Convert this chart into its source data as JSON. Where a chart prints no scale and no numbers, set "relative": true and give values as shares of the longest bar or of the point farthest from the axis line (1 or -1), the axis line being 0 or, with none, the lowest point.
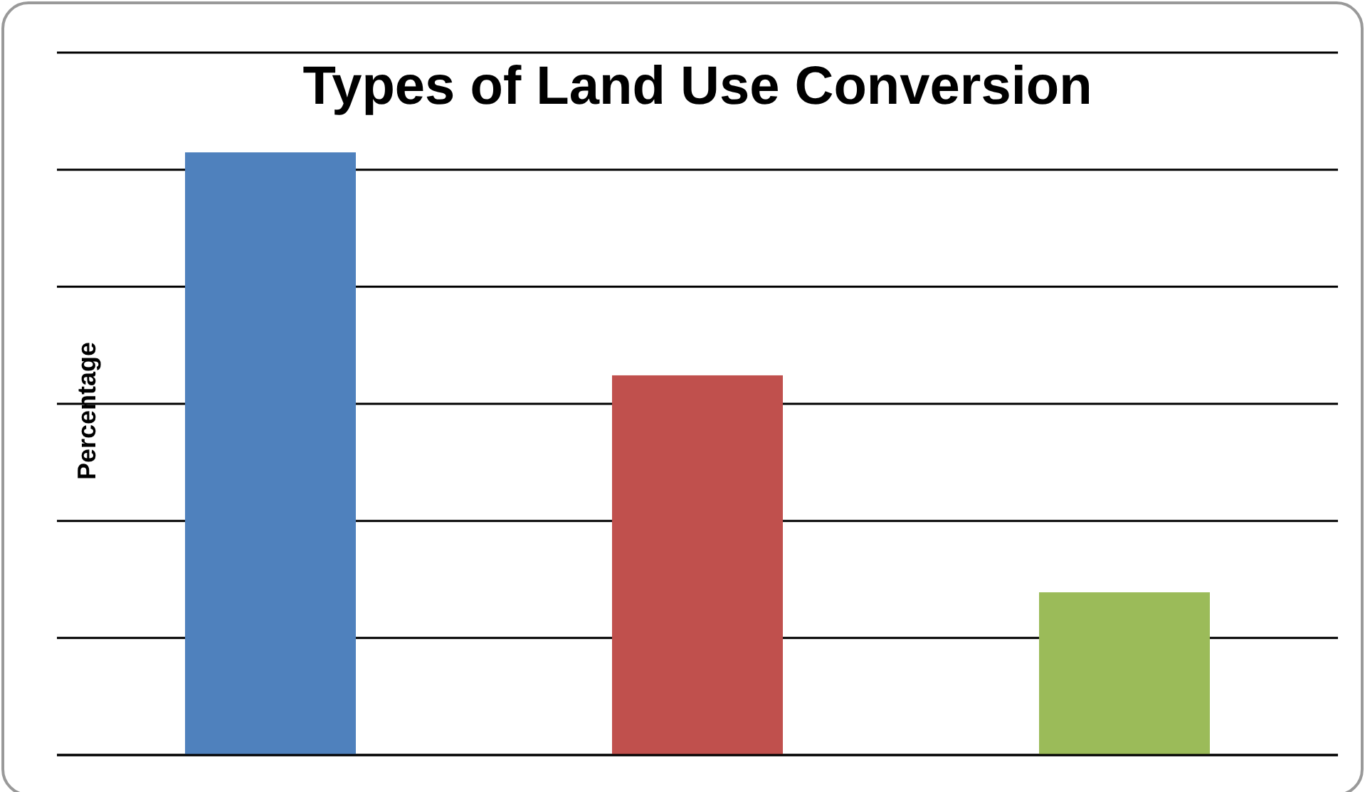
{
  "chart_data": {
    "type": "bar",
    "title": "Types of Land Use Conversion",
    "ylabel": "Percentage",
    "relative": true,
    "categories": [
      null,
      null,
      null
    ],
    "colors": [
      "#4f81bd",
      "#c0504d",
      "#9bbb59"
    ],
    "values": [
      1,
      0.63,
      0.27
    ],
    "grid": "y"
  }
}
